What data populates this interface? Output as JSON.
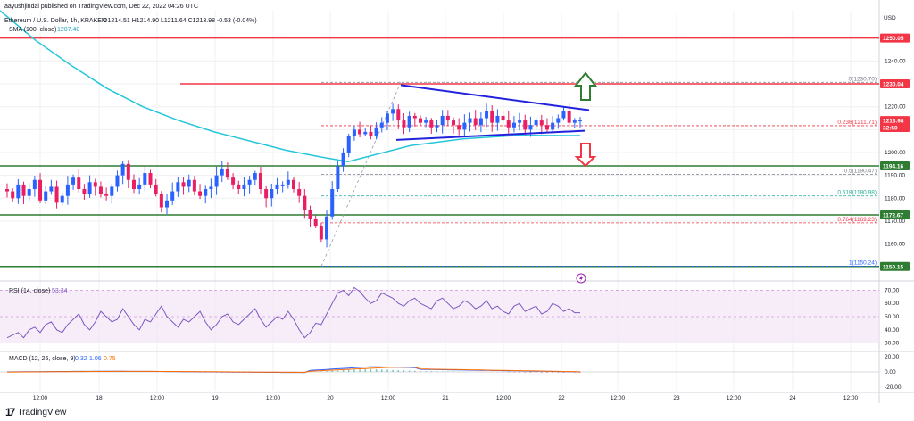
{
  "header": {
    "publisher": "aayushjindal published on TradingView.com, Dec 22, 2022 04:26 UTC",
    "symbol": "Ethereum / U.S. Dollar, 1h, KRAKEN",
    "ohlc": "O1214.51  H1214.90  L1211.64  C1213.98  -0.53 (-0.04%)",
    "sma_label": "SMA (100, close)",
    "sma_value": "1207.40"
  },
  "currency": "USD",
  "price_ticks": [
    "1240.00",
    "1230.00",
    "1220.00",
    "1210.00",
    "1200.00",
    "1190.00",
    "1180.00",
    "1170.00",
    "1160.00"
  ],
  "price_tags": [
    {
      "text": "1250.05",
      "price": 1250.05,
      "color": "#f23645"
    },
    {
      "text": "1230.04",
      "price": 1230.04,
      "color": "#f23645"
    },
    {
      "text": "1213.98",
      "price": 1213.98,
      "color": "#f23645"
    },
    {
      "text": "32:50",
      "price": 1210.9,
      "color": "#f23645"
    },
    {
      "text": "1194.16",
      "price": 1194.16,
      "color": "#2e7d32"
    },
    {
      "text": "1172.67",
      "price": 1172.67,
      "color": "#2e7d32"
    },
    {
      "text": "1150.15",
      "price": 1150.15,
      "color": "#2e7d32"
    }
  ],
  "fib_labels": [
    {
      "text": "0(1230.70)",
      "price": 1230.7,
      "color": "#787b86"
    },
    {
      "text": "0.236(1211.71)",
      "price": 1211.71,
      "color": "#f23645"
    },
    {
      "text": "0.5(1190.47)",
      "price": 1190.47,
      "color": "#787b86"
    },
    {
      "text": "0.618(1180.98)",
      "price": 1180.98,
      "color": "#22ab94"
    },
    {
      "text": "0.764(1169.23)",
      "price": 1169.23,
      "color": "#f23645"
    },
    {
      "text": "1(1150.24)",
      "price": 1150.24,
      "color": "#2962ff"
    }
  ],
  "rsi": {
    "label": "RSI (14, close)",
    "value": "53.34",
    "ticks": [
      "70.00",
      "60.00",
      "50.00",
      "40.00",
      "30.00"
    ]
  },
  "macd": {
    "label": "MACD (12, 26, close, 9)",
    "v1": "0.32",
    "v2": "1.06",
    "v3": "0.75",
    "ticks": [
      "20.00",
      "0.00",
      "-20.00"
    ]
  },
  "time_labels": [
    "12:00",
    "18",
    "12:00",
    "19",
    "12:00",
    "20",
    "12:00",
    "21",
    "12:00",
    "22",
    "12:00",
    "23",
    "12:00",
    "24",
    "12:00"
  ],
  "footer": {
    "brand": "TradingView"
  },
  "chart_data": {
    "type": "candlestick",
    "symbol": "Ethereum / U.S. Dollar, 1h, KRAKEN",
    "price_range": [
      1145,
      1262
    ],
    "horizontal_levels": [
      {
        "price": 1250.05,
        "color": "#f23645"
      },
      {
        "price": 1230.04,
        "color": "#f23645"
      },
      {
        "price": 1194.16,
        "color": "#2e7d32"
      },
      {
        "price": 1172.67,
        "color": "#2e7d32"
      },
      {
        "price": 1150.15,
        "color": "#2e7d32"
      }
    ],
    "fib_levels": [
      {
        "ratio": 0,
        "price": 1230.7
      },
      {
        "ratio": 0.236,
        "price": 1211.71
      },
      {
        "ratio": 0.5,
        "price": 1190.47
      },
      {
        "ratio": 0.618,
        "price": 1180.98
      },
      {
        "ratio": 0.764,
        "price": 1169.23
      },
      {
        "ratio": 1,
        "price": 1150.24
      }
    ],
    "triangle": {
      "upper": [
        [
          1230,
          1220
        ],
        [
          1223,
          1217
        ]
      ],
      "lower": [
        [
          1214,
          1207
        ],
        [
          1211,
          1209
        ]
      ]
    },
    "arrows": [
      {
        "dir": "up",
        "color": "#2e7d32"
      },
      {
        "dir": "down",
        "color": "#f23645"
      }
    ],
    "closes": [
      1183,
      1180,
      1186,
      1181,
      1184,
      1188,
      1179,
      1183,
      1185,
      1178,
      1181,
      1186,
      1189,
      1184,
      1182,
      1187,
      1185,
      1182,
      1181,
      1185,
      1190,
      1195,
      1188,
      1184,
      1186,
      1191,
      1186,
      1182,
      1176,
      1179,
      1183,
      1187,
      1185,
      1188,
      1183,
      1181,
      1184,
      1185,
      1190,
      1193,
      1189,
      1186,
      1184,
      1186,
      1188,
      1191,
      1184,
      1180,
      1184,
      1186,
      1186,
      1188,
      1184,
      1181,
      1175,
      1171,
      1168,
      1162,
      1172,
      1184,
      1194,
      1200,
      1207,
      1210,
      1208,
      1209,
      1207,
      1211,
      1213,
      1217,
      1219,
      1214,
      1211,
      1216,
      1215,
      1213,
      1214,
      1211,
      1212,
      1216,
      1214,
      1212,
      1210,
      1213,
      1215,
      1212,
      1215,
      1218,
      1213,
      1216,
      1214,
      1211,
      1213,
      1214,
      1210,
      1212,
      1214,
      1212,
      1210,
      1213,
      1215,
      1218,
      1213,
      1214,
      1214
    ],
    "rsi_values": [
      34,
      36,
      38,
      34,
      40,
      42,
      38,
      44,
      46,
      40,
      38,
      44,
      48,
      52,
      44,
      40,
      46,
      54,
      50,
      46,
      48,
      56,
      50,
      44,
      40,
      48,
      46,
      52,
      58,
      50,
      46,
      42,
      48,
      46,
      50,
      54,
      46,
      40,
      44,
      50,
      52,
      46,
      44,
      48,
      52,
      56,
      48,
      42,
      46,
      50,
      48,
      54,
      48,
      40,
      34,
      38,
      45,
      44,
      52,
      60,
      68,
      70,
      66,
      72,
      69,
      64,
      60,
      62,
      68,
      66,
      64,
      60,
      58,
      62,
      64,
      60,
      58,
      56,
      62,
      64,
      60,
      56,
      58,
      62,
      60,
      56,
      58,
      62,
      56,
      58,
      54,
      52,
      58,
      60,
      54,
      56,
      58,
      52,
      54,
      60,
      58,
      54,
      56,
      53,
      53
    ],
    "rsi_range": [
      25,
      75
    ],
    "macd_range": [
      -25,
      25
    ]
  }
}
